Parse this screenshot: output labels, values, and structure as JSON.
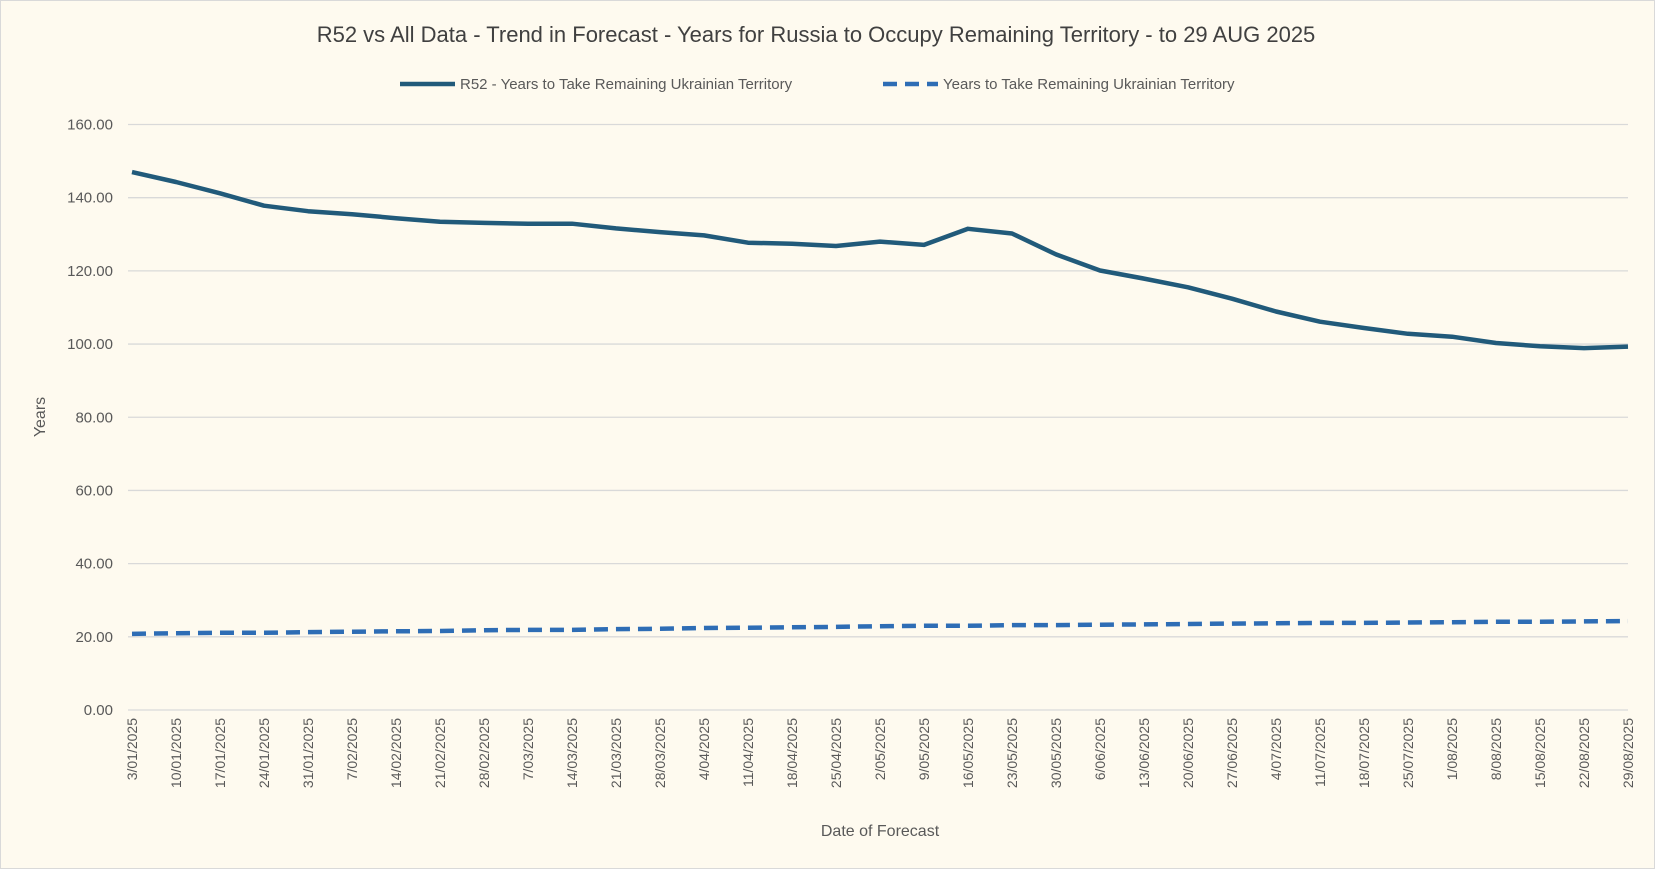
{
  "chart_data": {
    "type": "line",
    "title": "R52 vs All Data  - Trend in Forecast - Years for Russia to Occupy Remaining Territory - to 29 AUG 2025",
    "xlabel": "Date of Forecast",
    "ylabel": "Years",
    "ylim": [
      0,
      160
    ],
    "yticks": [
      "0.00",
      "20.00",
      "40.00",
      "60.00",
      "80.00",
      "100.00",
      "120.00",
      "140.00",
      "160.00"
    ],
    "grid": true,
    "legend_position": "top",
    "categories": [
      "3/01/2025",
      "10/01/2025",
      "17/01/2025",
      "24/01/2025",
      "31/01/2025",
      "7/02/2025",
      "14/02/2025",
      "21/02/2025",
      "28/02/2025",
      "7/03/2025",
      "14/03/2025",
      "21/03/2025",
      "28/03/2025",
      "4/04/2025",
      "11/04/2025",
      "18/04/2025",
      "25/04/2025",
      "2/05/2025",
      "9/05/2025",
      "16/05/2025",
      "23/05/2025",
      "30/05/2025",
      "6/06/2025",
      "13/06/2025",
      "20/06/2025",
      "27/06/2025",
      "4/07/2025",
      "11/07/2025",
      "18/07/2025",
      "25/07/2025",
      "1/08/2025",
      "8/08/2025",
      "15/08/2025",
      "22/08/2025",
      "29/08/2025"
    ],
    "series": [
      {
        "name": "R52 - Years to Take Remaining Ukrainian Territory",
        "color": "#215a7a",
        "dash": false,
        "values": [
          147.0,
          144.3,
          141.2,
          137.8,
          136.3,
          135.5,
          134.4,
          133.4,
          133.1,
          132.9,
          132.9,
          131.6,
          130.6,
          129.7,
          127.7,
          127.4,
          126.8,
          128.0,
          127.1,
          131.5,
          130.2,
          124.5,
          120.1,
          117.9,
          115.5,
          112.4,
          108.9,
          106.1,
          104.4,
          102.8,
          102.0,
          100.3,
          99.4,
          98.9,
          99.3
        ]
      },
      {
        "name": "Years to Take Remaining Ukrainian Territory",
        "color": "#2e6db5",
        "dash": true,
        "values": [
          20.8,
          21.0,
          21.1,
          21.1,
          21.3,
          21.4,
          21.5,
          21.6,
          21.8,
          21.9,
          21.9,
          22.1,
          22.2,
          22.4,
          22.5,
          22.6,
          22.7,
          22.9,
          23.0,
          23.0,
          23.2,
          23.2,
          23.3,
          23.4,
          23.5,
          23.6,
          23.7,
          23.8,
          23.8,
          23.9,
          24.0,
          24.1,
          24.1,
          24.2,
          24.3
        ]
      }
    ]
  }
}
